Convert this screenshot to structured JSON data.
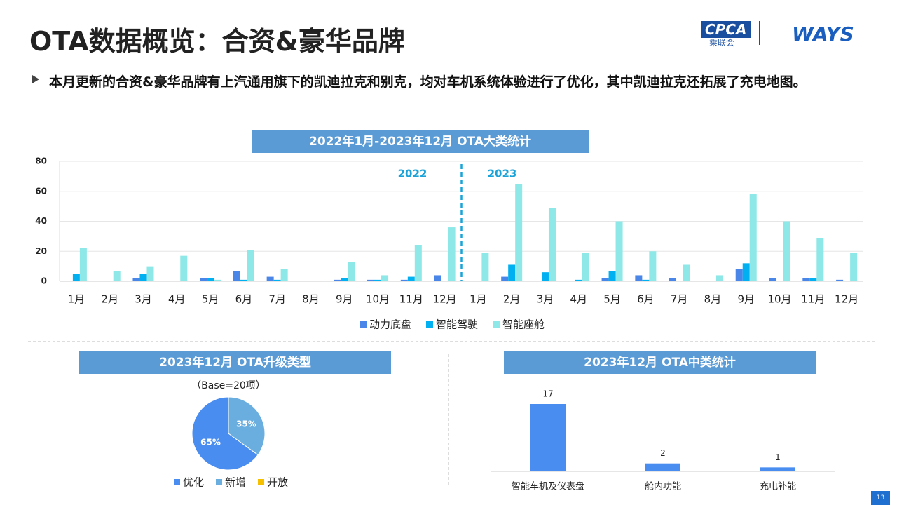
{
  "header": {
    "title": "OTA数据概览：合资&豪华品牌",
    "logos": [
      "CPCA",
      "乘联会",
      "WAYS"
    ]
  },
  "bullet": "本月更新的合资&豪华品牌有上汽通用旗下的凯迪拉克和别克，均对车机系统体验进行了优化，其中凯迪拉克还拓展了充电地图。",
  "page_number": "13",
  "chart_data": [
    {
      "type": "bar",
      "title": "2022年1月-2023年12月 OTA大类统计",
      "annotations": [
        "2022",
        "2023"
      ],
      "categories": [
        "1月",
        "2月",
        "3月",
        "4月",
        "5月",
        "6月",
        "7月",
        "8月",
        "9月",
        "10月",
        "11月",
        "12月",
        "1月",
        "2月",
        "3月",
        "4月",
        "5月",
        "6月",
        "7月",
        "8月",
        "9月",
        "10月",
        "11月",
        "12月"
      ],
      "series": [
        {
          "name": "动力底盘",
          "color": "#4a86e8",
          "values": [
            0,
            0,
            2,
            0,
            2,
            7,
            3,
            0,
            1,
            1,
            1,
            4,
            0,
            3,
            0,
            0,
            2,
            4,
            2,
            0,
            8,
            2,
            2,
            1
          ]
        },
        {
          "name": "智能驾驶",
          "color": "#00b0f0",
          "values": [
            5,
            0,
            5,
            0,
            2,
            1,
            1,
            0,
            2,
            1,
            3,
            0,
            0,
            11,
            6,
            1,
            7,
            1,
            0,
            0,
            12,
            0,
            2,
            0
          ]
        },
        {
          "name": "智能座舱",
          "color": "#8ee8e8",
          "values": [
            22,
            7,
            10,
            17,
            1,
            21,
            8,
            0,
            13,
            4,
            24,
            36,
            19,
            65,
            49,
            19,
            40,
            20,
            11,
            4,
            58,
            40,
            29,
            19
          ]
        }
      ],
      "ylim": [
        0,
        80
      ],
      "yticks": [
        0,
        20,
        40,
        60,
        80
      ],
      "grid": true
    },
    {
      "type": "pie",
      "title": "2023年12月 OTA升级类型",
      "subtitle": "（Base=20项）",
      "categories": [
        "优化",
        "新增",
        "开放"
      ],
      "values": [
        65,
        35,
        0
      ],
      "value_labels": [
        "65%",
        "35%",
        null
      ],
      "colors": [
        "#4a8df0",
        "#6aaee0",
        "#f5c000"
      ]
    },
    {
      "type": "bar",
      "title": "2023年12月 OTA中类统计",
      "categories": [
        "智能车机及仪表盘",
        "舱内功能",
        "充电补能"
      ],
      "values": [
        17,
        2,
        1
      ],
      "color": "#4a8df0"
    }
  ]
}
